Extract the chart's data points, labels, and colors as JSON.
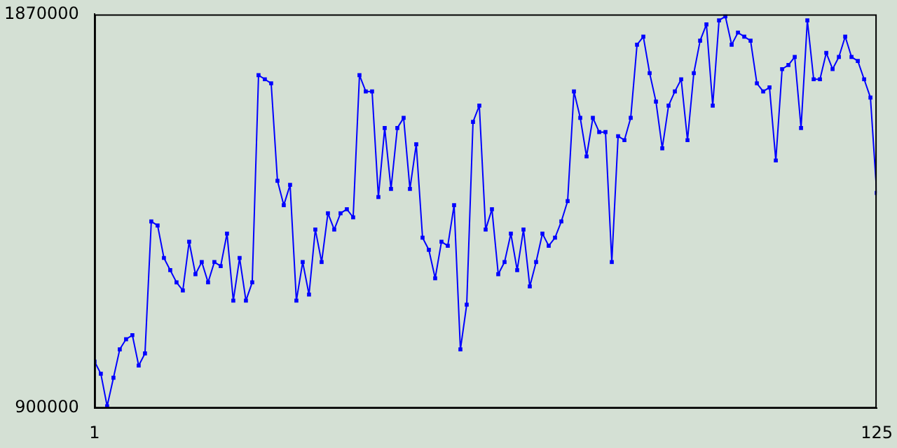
{
  "chart_data": {
    "type": "line",
    "marker": "square",
    "grid": false,
    "legend": false,
    "x": [
      1,
      2,
      3,
      4,
      5,
      6,
      7,
      8,
      9,
      10,
      11,
      12,
      13,
      14,
      15,
      16,
      17,
      18,
      19,
      20,
      21,
      22,
      23,
      24,
      25,
      26,
      27,
      28,
      29,
      30,
      31,
      32,
      33,
      34,
      35,
      36,
      37,
      38,
      39,
      40,
      41,
      42,
      43,
      44,
      45,
      46,
      47,
      48,
      49,
      50,
      51,
      52,
      53,
      54,
      55,
      56,
      57,
      58,
      59,
      60,
      61,
      62,
      63,
      64,
      65,
      66,
      67,
      68,
      69,
      70,
      71,
      72,
      73,
      74,
      75,
      76,
      77,
      78,
      79,
      80,
      81,
      82,
      83,
      84,
      85,
      86,
      87,
      88,
      89,
      90,
      91,
      92,
      93,
      94,
      95,
      96,
      97,
      98,
      99,
      100,
      101,
      102,
      103,
      104,
      105,
      106,
      107,
      108,
      109,
      110,
      111,
      112,
      113,
      114,
      115,
      116,
      117,
      118,
      119,
      120,
      121,
      122,
      123,
      124,
      125
    ],
    "series": [
      {
        "color": "#0000ff",
        "values": [
          1015000,
          985000,
          905000,
          975000,
          1045000,
          1070000,
          1080000,
          1005000,
          1035000,
          1360000,
          1350000,
          1270000,
          1240000,
          1210000,
          1190000,
          1310000,
          1230000,
          1260000,
          1210000,
          1260000,
          1250000,
          1330000,
          1165000,
          1270000,
          1165000,
          1210000,
          1720000,
          1710000,
          1700000,
          1460000,
          1400000,
          1450000,
          1165000,
          1260000,
          1180000,
          1340000,
          1260000,
          1380000,
          1340000,
          1380000,
          1390000,
          1370000,
          1720000,
          1680000,
          1680000,
          1420000,
          1590000,
          1440000,
          1590000,
          1615000,
          1440000,
          1550000,
          1320000,
          1290000,
          1220000,
          1310000,
          1300000,
          1400000,
          1045000,
          1155000,
          1605000,
          1645000,
          1340000,
          1390000,
          1230000,
          1260000,
          1330000,
          1240000,
          1340000,
          1200000,
          1260000,
          1330000,
          1300000,
          1320000,
          1360000,
          1410000,
          1680000,
          1615000,
          1520000,
          1615000,
          1580000,
          1580000,
          1260000,
          1570000,
          1560000,
          1615000,
          1795000,
          1815000,
          1725000,
          1655000,
          1540000,
          1645000,
          1680000,
          1710000,
          1560000,
          1725000,
          1805000,
          1845000,
          1645000,
          1855000,
          1865000,
          1795000,
          1825000,
          1815000,
          1805000,
          1700000,
          1680000,
          1690000,
          1510000,
          1735000,
          1745000,
          1765000,
          1590000,
          1855000,
          1710000,
          1710000,
          1775000,
          1735000,
          1765000,
          1815000,
          1765000,
          1755000,
          1710000,
          1665000,
          1430000
        ]
      }
    ],
    "xlim": [
      1,
      125
    ],
    "xticks": [
      1,
      125
    ],
    "ylim": [
      900000,
      1870000
    ],
    "yticks": [
      900000,
      1870000
    ]
  }
}
